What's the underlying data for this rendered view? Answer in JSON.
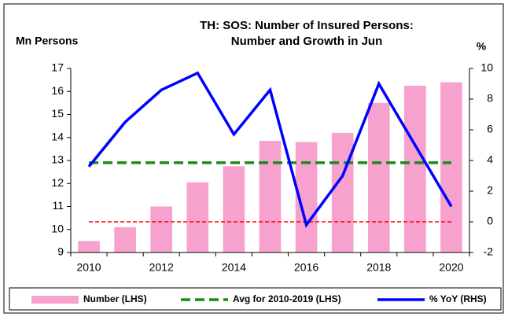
{
  "chart_data": {
    "type": "bar_line",
    "title": [
      "TH: SOS: Number of Insured Persons:",
      "Number and Growth in Jun"
    ],
    "y_axis_label": "Mn Persons",
    "y2_axis_label": "%",
    "categories": [
      "2010",
      null,
      "2012",
      null,
      "2014",
      null,
      "2016",
      null,
      "2018",
      null,
      "2020"
    ],
    "series": [
      {
        "name": "Number (LHS)",
        "type": "bar",
        "color": "#f7a1cf",
        "values": [
          9.5,
          10.1,
          11.0,
          12.05,
          12.75,
          13.85,
          13.8,
          14.2,
          15.5,
          16.25,
          16.4
        ]
      },
      {
        "name": "Avg for 2010-2019 (LHS)",
        "type": "hline",
        "color": "#1a8a1a",
        "value": 12.9
      },
      {
        "name": "% YoY (RHS)",
        "type": "line",
        "axis": "y2",
        "color": "#0000ff",
        "values": [
          3.6,
          6.5,
          8.6,
          9.7,
          5.7,
          8.6,
          -0.2,
          3.0,
          9.0,
          5.0,
          1.0
        ]
      }
    ],
    "y2_reference_line": {
      "value": 0,
      "color": "#ff0000"
    },
    "ylim": [
      9,
      17
    ],
    "yticks": [
      9,
      10,
      11,
      12,
      13,
      14,
      15,
      16,
      17
    ],
    "y2lim": [
      -2,
      10
    ],
    "y2ticks": [
      -2,
      0,
      2,
      4,
      6,
      8,
      10
    ]
  }
}
